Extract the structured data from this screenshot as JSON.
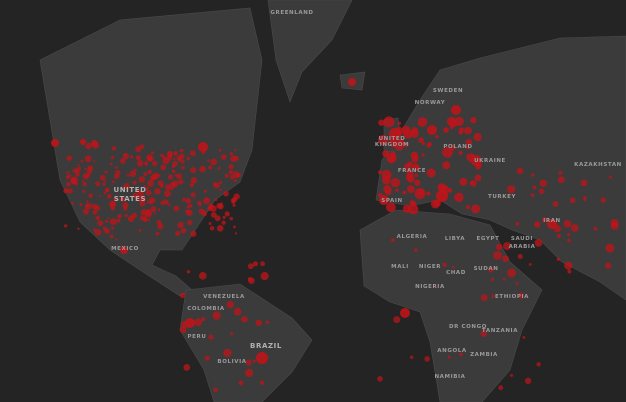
{
  "labels": [
    "GREENLAND",
    "NORWAY",
    "SWEDEN",
    "UNITED",
    "KINGDOM",
    "POLAND",
    "UKRAINE",
    "KAZAKHSTAN",
    "FRANCE",
    "SPAIN",
    "TURKEY",
    "IRAN",
    "ALGERIA",
    "LIBYA",
    "EGYPT",
    "SAUDI",
    "ARABIA",
    "MALI",
    "NIGER",
    "CHAD",
    "SUDAN",
    "NIGERIA",
    "ETHIOPIA",
    "DR CONGO",
    "TANZANIA",
    "ANGOLA",
    "ZAMBIA",
    "NAMIBIA",
    "UNITED",
    "STATES",
    "MEXICO",
    "VENEZUELA",
    "COLOMBIA",
    "PERU",
    "BRAZIL",
    "BOLIVIA"
  ]
}
